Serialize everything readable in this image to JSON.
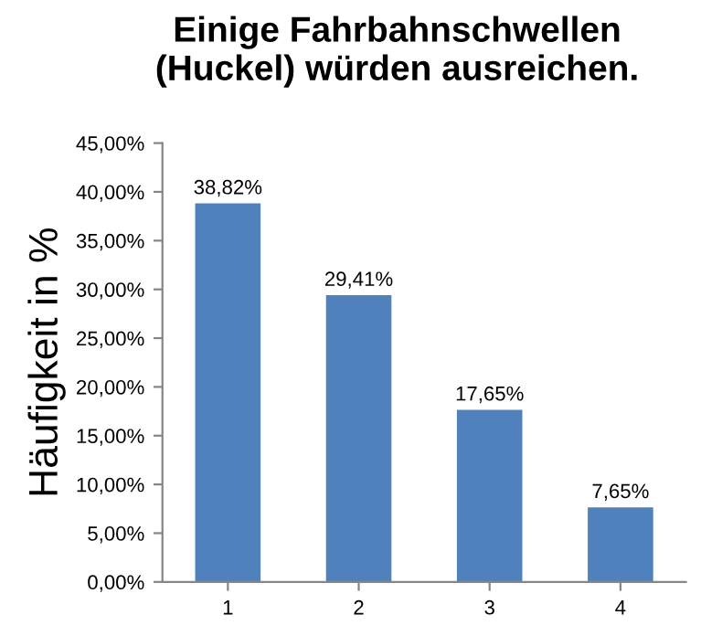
{
  "chart_data": {
    "type": "bar",
    "title": "Einige Fahrbahnschwellen\n(Huckel) würden ausreichen.",
    "ylabel": "Häufigkeit in %",
    "categories": [
      "1",
      "2",
      "3",
      "4"
    ],
    "values": [
      38.82,
      29.41,
      17.65,
      7.65
    ],
    "value_labels": [
      "38,82%",
      "29,41%",
      "17,65%",
      "7,65%"
    ],
    "color": "#4f81bd",
    "ylim": [
      0,
      45
    ],
    "yticks": [
      {
        "value": 0,
        "label": "0,00%"
      },
      {
        "value": 5,
        "label": "5,00%"
      },
      {
        "value": 10,
        "label": "10,00%"
      },
      {
        "value": 15,
        "label": "15,00%"
      },
      {
        "value": 20,
        "label": "20,00%"
      },
      {
        "value": 25,
        "label": "25,00%"
      },
      {
        "value": 30,
        "label": "30,00%"
      },
      {
        "value": 35,
        "label": "35,00%"
      },
      {
        "value": 40,
        "label": "40,00%"
      },
      {
        "value": 45,
        "label": "45,00%"
      }
    ],
    "grid": false,
    "legend": false
  }
}
